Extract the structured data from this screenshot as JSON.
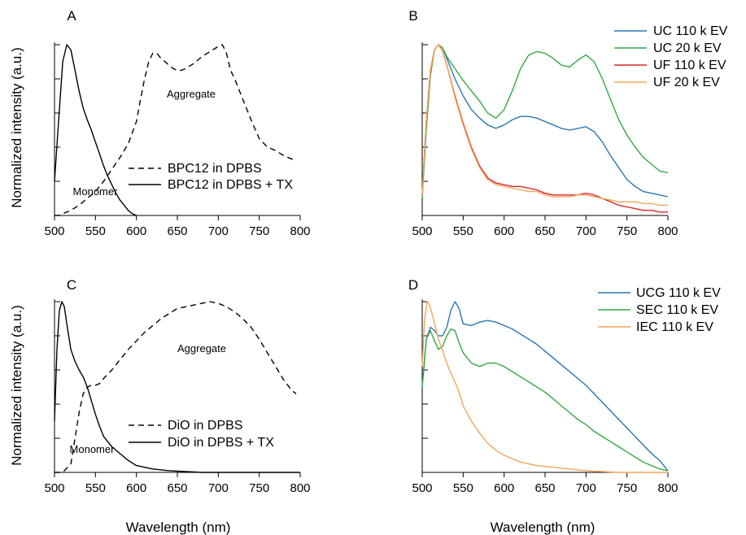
{
  "ylabel": "Normalized intensity (a.u.)",
  "xlabel": "Wavelength (nm)",
  "chart_data": [
    {
      "panel": "A",
      "type": "line",
      "xlim": [
        500,
        800
      ],
      "xticks": [
        500,
        550,
        600,
        650,
        700,
        750,
        800
      ],
      "ylabel": "Normalized intensity (a.u.)",
      "ylim": [
        0,
        1
      ],
      "grid": false,
      "legend_position": "lower-right",
      "annotations": [
        "Aggregate",
        "Monomer"
      ],
      "series": [
        {
          "name": "BPC12 in DPBS",
          "color": "#000000",
          "dash": "dashed",
          "x": [
            500,
            505,
            510,
            520,
            530,
            540,
            550,
            560,
            570,
            580,
            590,
            600,
            605,
            610,
            615,
            620,
            625,
            630,
            635,
            640,
            645,
            650,
            655,
            660,
            670,
            680,
            690,
            700,
            705,
            710,
            715,
            720,
            730,
            740,
            750,
            760,
            770,
            780,
            790,
            795
          ],
          "y": [
            0,
            0,
            0.01,
            0.03,
            0.06,
            0.1,
            0.14,
            0.2,
            0.27,
            0.34,
            0.42,
            0.55,
            0.68,
            0.8,
            0.9,
            0.95,
            0.95,
            0.92,
            0.9,
            0.88,
            0.86,
            0.85,
            0.85,
            0.86,
            0.89,
            0.93,
            0.96,
            0.99,
            1,
            0.95,
            0.85,
            0.8,
            0.68,
            0.56,
            0.45,
            0.4,
            0.38,
            0.35,
            0.33,
            0.32
          ]
        },
        {
          "name": "BPC12 in DPBS + TX",
          "color": "#000000",
          "dash": "solid",
          "x": [
            500,
            505,
            510,
            515,
            520,
            525,
            530,
            535,
            540,
            545,
            550,
            555,
            560,
            565,
            570,
            575,
            580,
            585,
            590,
            595,
            600
          ],
          "y": [
            0.2,
            0.55,
            0.9,
            1,
            0.97,
            0.85,
            0.73,
            0.63,
            0.56,
            0.5,
            0.43,
            0.36,
            0.29,
            0.23,
            0.18,
            0.13,
            0.09,
            0.06,
            0.03,
            0.01,
            0
          ]
        }
      ]
    },
    {
      "panel": "B",
      "type": "line",
      "xlim": [
        500,
        800
      ],
      "xticks": [
        500,
        550,
        600,
        650,
        700,
        750,
        800
      ],
      "ylim": [
        0,
        1
      ],
      "grid": false,
      "legend_position": "top-right",
      "series": [
        {
          "name": "UC 110 k EV",
          "color": "#2a76b5",
          "x": [
            500,
            505,
            510,
            515,
            520,
            525,
            530,
            540,
            550,
            560,
            570,
            580,
            590,
            600,
            610,
            620,
            630,
            640,
            650,
            660,
            670,
            680,
            690,
            700,
            710,
            720,
            730,
            740,
            750,
            760,
            770,
            780,
            790,
            800
          ],
          "y": [
            0.12,
            0.55,
            0.85,
            0.97,
            1,
            0.98,
            0.92,
            0.8,
            0.7,
            0.62,
            0.57,
            0.53,
            0.51,
            0.53,
            0.56,
            0.58,
            0.58,
            0.57,
            0.55,
            0.53,
            0.51,
            0.5,
            0.51,
            0.52,
            0.49,
            0.43,
            0.35,
            0.28,
            0.21,
            0.17,
            0.14,
            0.13,
            0.12,
            0.11
          ]
        },
        {
          "name": "UC 20 k EV",
          "color": "#34a845",
          "x": [
            500,
            505,
            510,
            515,
            520,
            525,
            530,
            540,
            550,
            560,
            570,
            580,
            590,
            600,
            610,
            620,
            630,
            640,
            650,
            660,
            670,
            680,
            690,
            700,
            710,
            720,
            730,
            740,
            750,
            760,
            770,
            780,
            790,
            800
          ],
          "y": [
            0.1,
            0.5,
            0.82,
            0.97,
            1,
            0.98,
            0.93,
            0.86,
            0.79,
            0.73,
            0.67,
            0.6,
            0.57,
            0.62,
            0.73,
            0.86,
            0.94,
            0.96,
            0.95,
            0.92,
            0.88,
            0.87,
            0.91,
            0.94,
            0.9,
            0.8,
            0.68,
            0.56,
            0.47,
            0.4,
            0.34,
            0.3,
            0.26,
            0.25
          ]
        },
        {
          "name": "UF 110 k EV",
          "color": "#d62728",
          "x": [
            500,
            505,
            510,
            515,
            520,
            525,
            530,
            540,
            550,
            560,
            570,
            580,
            590,
            600,
            610,
            620,
            630,
            640,
            650,
            660,
            670,
            680,
            690,
            700,
            710,
            720,
            730,
            740,
            750,
            760,
            770,
            780,
            790,
            800
          ],
          "y": [
            0.12,
            0.55,
            0.85,
            0.97,
            1,
            0.96,
            0.88,
            0.7,
            0.54,
            0.4,
            0.29,
            0.22,
            0.19,
            0.18,
            0.17,
            0.17,
            0.16,
            0.15,
            0.13,
            0.12,
            0.12,
            0.12,
            0.12,
            0.13,
            0.12,
            0.1,
            0.08,
            0.06,
            0.05,
            0.04,
            0.03,
            0.03,
            0.02,
            0.02
          ]
        },
        {
          "name": "UF 20 k EV",
          "color": "#f3a55b",
          "x": [
            500,
            505,
            510,
            515,
            520,
            525,
            530,
            540,
            550,
            560,
            570,
            580,
            590,
            600,
            610,
            620,
            630,
            640,
            650,
            660,
            670,
            680,
            690,
            700,
            710,
            720,
            730,
            740,
            750,
            760,
            770,
            780,
            790,
            800
          ],
          "y": [
            0.12,
            0.55,
            0.85,
            0.97,
            1,
            0.96,
            0.88,
            0.69,
            0.53,
            0.39,
            0.28,
            0.21,
            0.18,
            0.17,
            0.16,
            0.15,
            0.14,
            0.14,
            0.12,
            0.11,
            0.11,
            0.11,
            0.12,
            0.12,
            0.11,
            0.1,
            0.09,
            0.08,
            0.08,
            0.08,
            0.07,
            0.07,
            0.06,
            0.06
          ]
        }
      ]
    },
    {
      "panel": "C",
      "type": "line",
      "xlim": [
        500,
        800
      ],
      "xticks": [
        500,
        550,
        600,
        650,
        700,
        750,
        800
      ],
      "xlabel": "Wavelength (nm)",
      "ylabel": "Normalized intensity (a.u.)",
      "ylim": [
        0,
        1
      ],
      "grid": false,
      "legend_position": "lower-right",
      "annotations": [
        "Aggregate",
        "Monomer"
      ],
      "series": [
        {
          "name": "DiO in DPBS",
          "color": "#000000",
          "dash": "dashed",
          "x": [
            500,
            510,
            520,
            525,
            530,
            535,
            540,
            545,
            550,
            555,
            560,
            570,
            580,
            590,
            600,
            610,
            620,
            630,
            640,
            650,
            660,
            670,
            680,
            690,
            700,
            710,
            720,
            730,
            740,
            750,
            760,
            770,
            780,
            790,
            795
          ],
          "y": [
            0,
            0,
            0.05,
            0.2,
            0.35,
            0.46,
            0.5,
            0.51,
            0.51,
            0.52,
            0.55,
            0.6,
            0.66,
            0.72,
            0.77,
            0.82,
            0.86,
            0.9,
            0.93,
            0.96,
            0.97,
            0.98,
            0.99,
            1,
            0.99,
            0.97,
            0.94,
            0.9,
            0.85,
            0.78,
            0.7,
            0.62,
            0.54,
            0.48,
            0.46
          ]
        },
        {
          "name": "DiO in DPBS + TX",
          "color": "#000000",
          "dash": "solid",
          "x": [
            500,
            503,
            506,
            509,
            512,
            515,
            520,
            525,
            530,
            535,
            540,
            545,
            550,
            555,
            560,
            570,
            580,
            590,
            600,
            620,
            640,
            660,
            680,
            700,
            720,
            740,
            760,
            780,
            800
          ],
          "y": [
            0.3,
            0.72,
            0.95,
            1,
            0.97,
            0.87,
            0.72,
            0.65,
            0.6,
            0.56,
            0.5,
            0.42,
            0.34,
            0.27,
            0.21,
            0.15,
            0.11,
            0.07,
            0.04,
            0.02,
            0.01,
            0.005,
            0,
            0,
            0,
            0,
            0,
            0,
            0
          ]
        }
      ]
    },
    {
      "panel": "D",
      "type": "line",
      "xlim": [
        500,
        800
      ],
      "xticks": [
        500,
        550,
        600,
        650,
        700,
        750,
        800
      ],
      "xlabel": "Wavelength (nm)",
      "ylim": [
        0,
        1
      ],
      "grid": false,
      "legend_position": "top-right",
      "series": [
        {
          "name": "UCG 110 k EV",
          "color": "#2a76b5",
          "x": [
            500,
            505,
            510,
            515,
            520,
            525,
            530,
            535,
            540,
            545,
            550,
            560,
            570,
            580,
            590,
            600,
            610,
            620,
            630,
            640,
            650,
            660,
            670,
            680,
            690,
            700,
            710,
            720,
            730,
            740,
            750,
            760,
            770,
            780,
            790,
            800
          ],
          "y": [
            0.5,
            0.78,
            0.85,
            0.83,
            0.8,
            0.8,
            0.85,
            0.95,
            1,
            0.96,
            0.87,
            0.86,
            0.88,
            0.89,
            0.88,
            0.86,
            0.84,
            0.81,
            0.78,
            0.75,
            0.71,
            0.67,
            0.63,
            0.59,
            0.55,
            0.51,
            0.46,
            0.41,
            0.36,
            0.31,
            0.26,
            0.21,
            0.16,
            0.11,
            0.07,
            0.01
          ]
        },
        {
          "name": "SEC 110 k EV",
          "color": "#34a845",
          "x": [
            500,
            505,
            510,
            515,
            520,
            525,
            530,
            535,
            540,
            545,
            550,
            560,
            570,
            580,
            590,
            600,
            610,
            620,
            630,
            640,
            650,
            660,
            670,
            680,
            690,
            700,
            710,
            720,
            730,
            740,
            750,
            760,
            770,
            780,
            790,
            800
          ],
          "y": [
            0.5,
            0.78,
            0.83,
            0.77,
            0.72,
            0.74,
            0.8,
            0.84,
            0.83,
            0.76,
            0.7,
            0.64,
            0.62,
            0.64,
            0.64,
            0.62,
            0.59,
            0.56,
            0.53,
            0.5,
            0.47,
            0.43,
            0.39,
            0.35,
            0.31,
            0.28,
            0.24,
            0.21,
            0.18,
            0.15,
            0.12,
            0.09,
            0.06,
            0.04,
            0.02,
            0.01
          ]
        },
        {
          "name": "IEC 110 k EV",
          "color": "#f3a55b",
          "x": [
            500,
            503,
            506,
            509,
            512,
            515,
            520,
            525,
            530,
            535,
            540,
            545,
            550,
            560,
            570,
            580,
            590,
            600,
            620,
            640,
            660,
            680,
            700,
            720,
            740,
            760,
            780,
            800
          ],
          "y": [
            0.62,
            0.9,
            1,
            0.98,
            0.93,
            0.87,
            0.78,
            0.71,
            0.64,
            0.58,
            0.53,
            0.47,
            0.39,
            0.3,
            0.23,
            0.17,
            0.13,
            0.1,
            0.06,
            0.04,
            0.03,
            0.02,
            0.01,
            0.005,
            0,
            0,
            0,
            0
          ]
        }
      ]
    }
  ]
}
